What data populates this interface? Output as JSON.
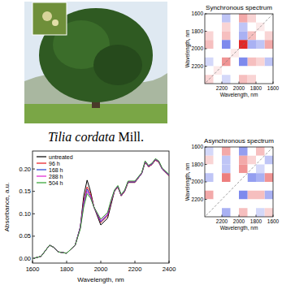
{
  "caption": {
    "species": "Tilia cordata",
    "authority": "Mill."
  },
  "chart_data": [
    {
      "type": "line",
      "x_label": "Wavelength, nm",
      "y_label": "Absorbance, a.u.",
      "x": [
        1600,
        1650,
        1700,
        1725,
        1750,
        1800,
        1850,
        1880,
        1900,
        1920,
        1940,
        1960,
        2000,
        2040,
        2060,
        2080,
        2100,
        2120,
        2140,
        2160,
        2200,
        2240,
        2260,
        2280,
        2300,
        2320,
        2340,
        2360,
        2400
      ],
      "series": [
        {
          "name": "untreated",
          "color": "#000000",
          "values": [
            0.0,
            0.005,
            0.03,
            0.025,
            0.015,
            0.012,
            0.03,
            0.07,
            0.14,
            0.175,
            0.15,
            0.115,
            0.075,
            0.09,
            0.12,
            0.15,
            0.16,
            0.14,
            0.15,
            0.17,
            0.17,
            0.19,
            0.215,
            0.205,
            0.21,
            0.22,
            0.215,
            0.2,
            0.185
          ]
        },
        {
          "name": "96 h",
          "color": "#e8141c",
          "values": [
            0.0,
            0.005,
            0.03,
            0.025,
            0.015,
            0.012,
            0.03,
            0.07,
            0.13,
            0.16,
            0.145,
            0.115,
            0.08,
            0.095,
            0.125,
            0.15,
            0.16,
            0.14,
            0.15,
            0.17,
            0.17,
            0.19,
            0.215,
            0.205,
            0.21,
            0.22,
            0.215,
            0.2,
            0.185
          ]
        },
        {
          "name": "168 h",
          "color": "#1f3fd1",
          "values": [
            0.0,
            0.005,
            0.03,
            0.025,
            0.015,
            0.012,
            0.03,
            0.07,
            0.125,
            0.155,
            0.14,
            0.115,
            0.082,
            0.098,
            0.127,
            0.151,
            0.161,
            0.141,
            0.151,
            0.171,
            0.171,
            0.19,
            0.216,
            0.206,
            0.211,
            0.221,
            0.216,
            0.2,
            0.186
          ]
        },
        {
          "name": "288 h",
          "color": "#e020d0",
          "values": [
            0.0,
            0.005,
            0.03,
            0.025,
            0.015,
            0.012,
            0.03,
            0.068,
            0.12,
            0.15,
            0.138,
            0.115,
            0.085,
            0.1,
            0.128,
            0.152,
            0.162,
            0.142,
            0.152,
            0.172,
            0.172,
            0.191,
            0.217,
            0.207,
            0.212,
            0.222,
            0.217,
            0.201,
            0.187
          ]
        },
        {
          "name": "504 h",
          "color": "#2ea02e",
          "values": [
            0.0,
            0.005,
            0.03,
            0.025,
            0.015,
            0.012,
            0.03,
            0.066,
            0.115,
            0.145,
            0.135,
            0.115,
            0.088,
            0.103,
            0.13,
            0.153,
            0.163,
            0.143,
            0.153,
            0.173,
            0.173,
            0.192,
            0.218,
            0.208,
            0.213,
            0.223,
            0.218,
            0.202,
            0.188
          ]
        }
      ],
      "xlim": [
        1600,
        2400
      ],
      "xticks": [
        1600,
        1800,
        2000,
        2200,
        2400
      ],
      "ylim": [
        -0.01,
        0.24
      ],
      "yticks": [
        {
          "value": 0,
          "label": "0.00"
        },
        {
          "value": 0.05,
          "label": "0.05"
        },
        {
          "value": 0.1,
          "label": "0.10"
        },
        {
          "value": 0.15,
          "label": "0.15"
        },
        {
          "value": 0.2,
          "label": "0.20"
        }
      ],
      "legend": "upper left",
      "grid": false
    },
    {
      "type": "heatmap",
      "title": "Synchronous spectrum",
      "x_label": "Wavelength, nm",
      "y_label": "Wavelength, nm",
      "x": [
        1650,
        1750,
        1850,
        1950,
        2050,
        2150,
        2250,
        2350
      ],
      "y": [
        1650,
        1750,
        1850,
        1950,
        2050,
        2150,
        2250,
        2350
      ],
      "z": [
        [
          0,
          0,
          0.2,
          0.4,
          0,
          -0.3,
          0,
          0
        ],
        [
          0,
          0.1,
          0,
          -0.3,
          0,
          0.2,
          0,
          0
        ],
        [
          0.2,
          0,
          0.3,
          -0.4,
          0,
          0.3,
          0,
          0.2
        ],
        [
          0.4,
          -0.3,
          -0.4,
          1.0,
          0,
          -0.6,
          0,
          0.3
        ],
        [
          0,
          0,
          0,
          0,
          0.1,
          0,
          0,
          0
        ],
        [
          -0.3,
          0.2,
          0.3,
          -0.6,
          0,
          0.5,
          0,
          -0.2
        ],
        [
          0,
          0,
          0,
          0,
          0,
          0,
          0.1,
          0
        ],
        [
          0,
          0,
          0.2,
          0.3,
          0,
          -0.2,
          0,
          0.2
        ]
      ],
      "zlim": [
        -1,
        1
      ],
      "xlim": [
        2400,
        1600
      ],
      "xticks": [
        2200,
        2000,
        1800,
        1600
      ],
      "ylim": [
        1600,
        2400
      ],
      "yticks": [
        1600,
        1800,
        2000,
        2200
      ]
    },
    {
      "type": "heatmap",
      "title": "Asynchronous spectrum",
      "x_label": "Wavelength, nm",
      "y_label": "Wavelength, nm",
      "x": [
        1650,
        1750,
        1850,
        1950,
        2050,
        2150,
        2250,
        2350
      ],
      "y": [
        1650,
        1750,
        1850,
        1950,
        2050,
        2150,
        2250,
        2350
      ],
      "z": [
        [
          0,
          0.3,
          0,
          -0.5,
          0,
          0.4,
          0,
          -0.2
        ],
        [
          -0.3,
          0,
          0.2,
          0.4,
          0,
          -0.3,
          0,
          0.2
        ],
        [
          0,
          -0.2,
          0,
          0.5,
          0,
          -0.3,
          0,
          0
        ],
        [
          0.5,
          -0.4,
          -0.5,
          0,
          0,
          0.6,
          0,
          -0.3
        ],
        [
          0,
          0,
          0,
          0,
          0,
          0,
          0,
          0
        ],
        [
          -0.4,
          0.3,
          0.3,
          -0.6,
          0,
          0,
          0,
          0.4
        ],
        [
          0,
          0,
          0,
          0,
          0,
          0,
          0,
          0
        ],
        [
          0.2,
          -0.2,
          0,
          0.3,
          0,
          -0.4,
          0,
          0
        ]
      ],
      "zlim": [
        -1,
        1
      ],
      "xlim": [
        2400,
        1600
      ],
      "xticks": [
        2200,
        2000,
        1800,
        1600
      ],
      "ylim": [
        1600,
        2400
      ],
      "yticks": [
        1600,
        1800,
        2000,
        2200
      ]
    }
  ]
}
